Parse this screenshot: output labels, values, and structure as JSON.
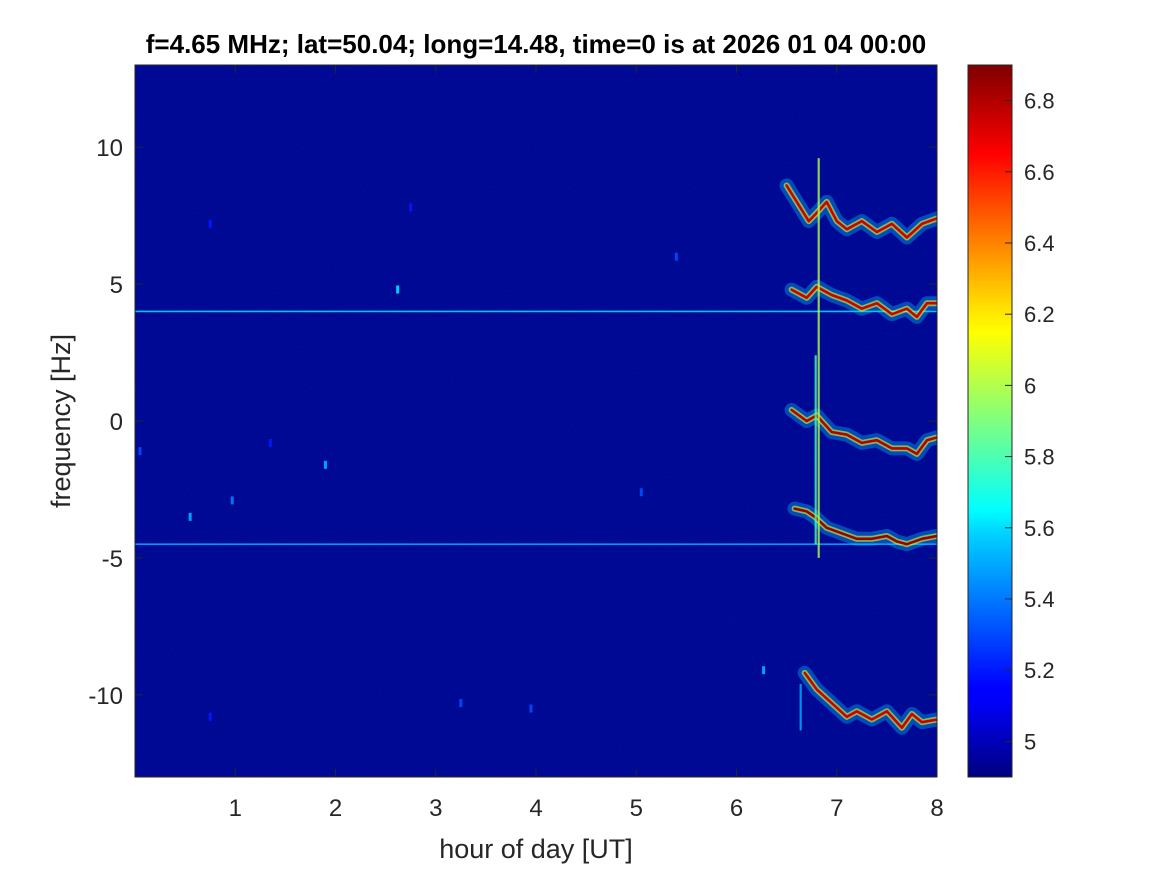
{
  "chart_data": {
    "type": "heatmap",
    "title": "f=4.65 MHz;  lat=50.04; long=14.48, time=0 is at 2026 01 04 00:00",
    "xlabel": "hour of day [UT]",
    "ylabel": "frequency [Hz]",
    "xlim": [
      0,
      8
    ],
    "ylim": [
      -13,
      13
    ],
    "x_ticks": [
      1,
      2,
      3,
      4,
      5,
      6,
      7,
      8
    ],
    "x_tick_labels": [
      "1",
      "2",
      "3",
      "4",
      "5",
      "6",
      "7",
      "8"
    ],
    "y_ticks": [
      10,
      5,
      0,
      -5,
      -10
    ],
    "y_tick_labels": [
      "10",
      "5",
      "0",
      "-5",
      "-10"
    ],
    "colorbar": {
      "colormap": "jet",
      "range": [
        4.9,
        6.9
      ],
      "ticks": [
        6.8,
        6.6,
        6.4,
        6.2,
        6,
        5.8,
        5.6,
        5.4,
        5.2,
        5
      ],
      "tick_labels": [
        "6.8",
        "6.6",
        "6.4",
        "6.2",
        "6",
        "5.8",
        "5.6",
        "5.4",
        "5.2",
        "5"
      ]
    },
    "background_level": 4.95,
    "constant_lines": [
      {
        "frequency": 4.0,
        "x_range": [
          0,
          8
        ],
        "level": 5.6
      },
      {
        "frequency": -4.5,
        "x_range": [
          0,
          8
        ],
        "level": 5.5
      }
    ],
    "traces": [
      {
        "points": [
          [
            6.5,
            8.6
          ],
          [
            6.72,
            7.3
          ],
          [
            6.8,
            7.6
          ],
          [
            6.9,
            8.0
          ],
          [
            7.0,
            7.3
          ],
          [
            7.1,
            7.0
          ],
          [
            7.25,
            7.3
          ],
          [
            7.4,
            6.9
          ],
          [
            7.55,
            7.2
          ],
          [
            7.7,
            6.7
          ],
          [
            7.85,
            7.2
          ],
          [
            8.0,
            7.4
          ]
        ],
        "level": 6.75
      },
      {
        "points": [
          [
            6.55,
            4.8
          ],
          [
            6.7,
            4.5
          ],
          [
            6.8,
            4.9
          ],
          [
            6.95,
            4.6
          ],
          [
            7.1,
            4.4
          ],
          [
            7.25,
            4.1
          ],
          [
            7.4,
            4.3
          ],
          [
            7.55,
            3.9
          ],
          [
            7.7,
            4.1
          ],
          [
            7.8,
            3.8
          ],
          [
            7.9,
            4.3
          ],
          [
            8.0,
            4.3
          ]
        ],
        "level": 6.75
      },
      {
        "points": [
          [
            6.55,
            0.4
          ],
          [
            6.7,
            0.0
          ],
          [
            6.8,
            0.2
          ],
          [
            6.95,
            -0.4
          ],
          [
            7.1,
            -0.5
          ],
          [
            7.25,
            -0.8
          ],
          [
            7.4,
            -0.7
          ],
          [
            7.55,
            -1.0
          ],
          [
            7.7,
            -1.0
          ],
          [
            7.8,
            -1.2
          ],
          [
            7.9,
            -0.7
          ],
          [
            8.0,
            -0.6
          ]
        ],
        "level": 6.8
      },
      {
        "points": [
          [
            6.58,
            -3.2
          ],
          [
            6.7,
            -3.3
          ],
          [
            6.78,
            -3.5
          ],
          [
            6.9,
            -3.9
          ],
          [
            7.05,
            -4.1
          ],
          [
            7.2,
            -4.3
          ],
          [
            7.35,
            -4.3
          ],
          [
            7.5,
            -4.2
          ],
          [
            7.6,
            -4.4
          ],
          [
            7.7,
            -4.5
          ],
          [
            7.85,
            -4.3
          ],
          [
            8.0,
            -4.2
          ]
        ],
        "level": 6.85
      },
      {
        "points": [
          [
            6.68,
            -9.2
          ],
          [
            6.8,
            -9.8
          ],
          [
            6.95,
            -10.3
          ],
          [
            7.1,
            -10.8
          ],
          [
            7.2,
            -10.6
          ],
          [
            7.35,
            -10.9
          ],
          [
            7.5,
            -10.6
          ],
          [
            7.65,
            -11.2
          ],
          [
            7.75,
            -10.7
          ],
          [
            7.85,
            -11.0
          ],
          [
            8.0,
            -10.9
          ]
        ],
        "level": 6.75
      }
    ],
    "spikes": [
      {
        "x": 6.82,
        "y_range": [
          -5.0,
          9.6
        ],
        "level": 6.0
      },
      {
        "x": 6.79,
        "y_range": [
          -4.5,
          2.4
        ],
        "level": 5.8
      },
      {
        "x": 6.64,
        "y_range": [
          -11.3,
          -9.6
        ],
        "level": 5.5
      }
    ],
    "speckles": [
      {
        "x": 0.55,
        "y": -3.5,
        "level": 5.5
      },
      {
        "x": 0.97,
        "y": -2.9,
        "level": 5.4
      },
      {
        "x": 1.9,
        "y": -1.6,
        "level": 5.5
      },
      {
        "x": 2.62,
        "y": 4.8,
        "level": 5.6
      },
      {
        "x": 3.25,
        "y": -10.3,
        "level": 5.3
      },
      {
        "x": 3.95,
        "y": -10.5,
        "level": 5.3
      },
      {
        "x": 5.4,
        "y": 6.0,
        "level": 5.3
      },
      {
        "x": 6.27,
        "y": -9.1,
        "level": 5.5
      },
      {
        "x": 5.05,
        "y": -2.6,
        "level": 5.3
      },
      {
        "x": 0.05,
        "y": -1.1,
        "level": 5.3
      },
      {
        "x": 0.75,
        "y": 7.2,
        "level": 5.2
      },
      {
        "x": 2.75,
        "y": 7.8,
        "level": 5.2
      },
      {
        "x": 1.35,
        "y": -0.8,
        "level": 5.2
      },
      {
        "x": 0.75,
        "y": -10.8,
        "level": 5.2
      }
    ]
  }
}
